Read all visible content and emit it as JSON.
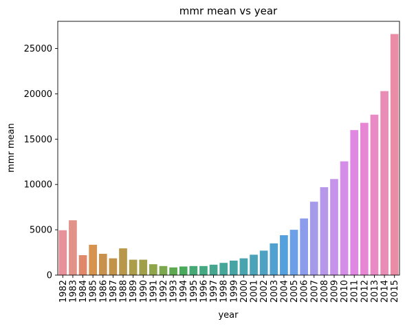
{
  "chart_data": {
    "type": "bar",
    "title": "mmr mean vs year",
    "xlabel": "year",
    "ylabel": "mmr mean",
    "ylim": [
      0,
      28000
    ],
    "yticks": [
      0,
      5000,
      10000,
      15000,
      20000,
      25000
    ],
    "grid": false,
    "categories": [
      "1982",
      "1983",
      "1984",
      "1985",
      "1986",
      "1987",
      "1988",
      "1989",
      "1990",
      "1991",
      "1992",
      "1993",
      "1994",
      "1995",
      "1996",
      "1997",
      "1998",
      "1999",
      "2000",
      "2001",
      "2002",
      "2003",
      "2004",
      "2005",
      "2006",
      "2007",
      "2008",
      "2009",
      "2010",
      "2011",
      "2012",
      "2013",
      "2014",
      "2015"
    ],
    "values": [
      4950,
      6050,
      2200,
      3350,
      2350,
      1850,
      2950,
      1700,
      1700,
      1200,
      1000,
      850,
      950,
      1000,
      1000,
      1150,
      1350,
      1600,
      1850,
      2250,
      2700,
      3500,
      4400,
      5000,
      6250,
      8100,
      9700,
      10600,
      12550,
      16000,
      16800,
      17700,
      20300,
      26600
    ],
    "colors": [
      "#e8919b",
      "#e1938a",
      "#e0896a",
      "#d7934d",
      "#c9914e",
      "#c29249",
      "#b8974b",
      "#ac9d4a",
      "#a09f4a",
      "#8fa54a",
      "#7ba84c",
      "#5ea94f",
      "#48aa5a",
      "#44a974",
      "#44a882",
      "#44a68f",
      "#45a69a",
      "#46a5a4",
      "#48a4ae",
      "#4aa3b8",
      "#4da2c3",
      "#50a1cf",
      "#53a0df",
      "#6d9ee8",
      "#8c9ced",
      "#a49ae9",
      "#b797e9",
      "#c593e9",
      "#d48ee8",
      "#e086e3",
      "#e787d3",
      "#e98ac5",
      "#ea8db6",
      "#eb8ca6"
    ]
  }
}
